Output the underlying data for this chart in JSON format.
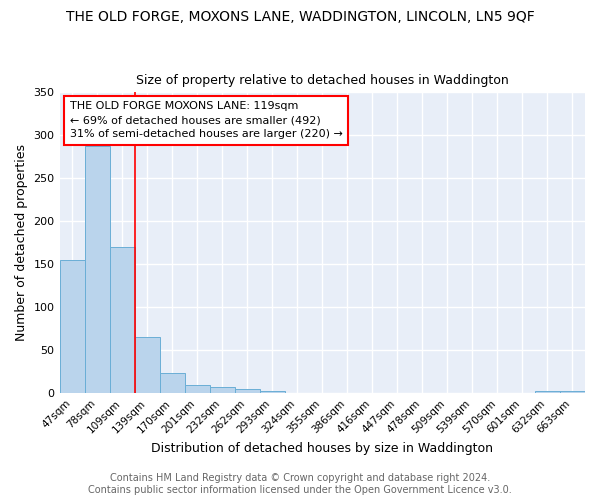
{
  "title_line1": "THE OLD FORGE, MOXONS LANE, WADDINGTON, LINCOLN, LN5 9QF",
  "title_line2": "Size of property relative to detached houses in Waddington",
  "xlabel": "Distribution of detached houses by size in Waddington",
  "ylabel": "Number of detached properties",
  "bin_labels": [
    "47sqm",
    "78sqm",
    "109sqm",
    "139sqm",
    "170sqm",
    "201sqm",
    "232sqm",
    "262sqm",
    "293sqm",
    "324sqm",
    "355sqm",
    "386sqm",
    "416sqm",
    "447sqm",
    "478sqm",
    "509sqm",
    "539sqm",
    "570sqm",
    "601sqm",
    "632sqm",
    "663sqm"
  ],
  "bin_values": [
    155,
    288,
    170,
    65,
    24,
    10,
    7,
    5,
    3,
    0,
    0,
    0,
    0,
    0,
    0,
    0,
    0,
    0,
    0,
    3,
    3
  ],
  "bar_color": "#bad4ec",
  "bar_edge_color": "#6aaed6",
  "red_line_x": 2.5,
  "annotation_text": "THE OLD FORGE MOXONS LANE: 119sqm\n← 69% of detached houses are smaller (492)\n31% of semi-detached houses are larger (220) →",
  "annotation_fontsize": 8,
  "ylim_max": 350,
  "yticks": [
    0,
    50,
    100,
    150,
    200,
    250,
    300,
    350
  ],
  "background_color": "#e8eef8",
  "grid_color": "#ffffff",
  "footer_text": "Contains HM Land Registry data © Crown copyright and database right 2024.\nContains public sector information licensed under the Open Government Licence v3.0.",
  "title_fontsize": 10,
  "subtitle_fontsize": 9,
  "xlabel_fontsize": 9,
  "ylabel_fontsize": 9,
  "footer_fontsize": 7,
  "tick_fontsize": 7.5,
  "ytick_fontsize": 8
}
